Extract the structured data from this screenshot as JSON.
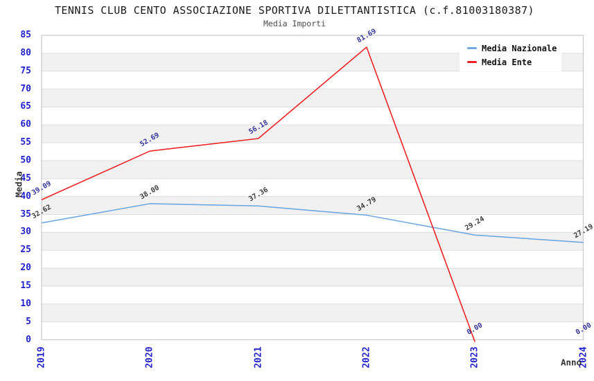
{
  "header": {
    "title": "TENNIS CLUB CENTO ASSOCIAZIONE SPORTIVA DILETTANTISTICA (c.f.81003180387)",
    "subtitle": "Media Importi"
  },
  "chart_data": {
    "type": "line",
    "x": [
      "2019",
      "2020",
      "2021",
      "2022",
      "2023",
      "2024"
    ],
    "series": [
      {
        "name": "Media Nazionale",
        "color": "#6FA9E0",
        "label_color": "#3B3B3B",
        "values": [
          32.62,
          38.0,
          37.36,
          34.79,
          29.24,
          27.19
        ]
      },
      {
        "name": "Media Ente",
        "color": "#EE2222",
        "label_color": "#333399",
        "values": [
          39.09,
          52.69,
          56.18,
          81.69,
          0.0,
          0.0
        ]
      }
    ],
    "xlabel": "Anno",
    "ylabel": "Media",
    "ylim": [
      0,
      85
    ],
    "ytick_step": 5,
    "grid": "horizontal-bands",
    "legend_position": "top-right"
  },
  "colors": {
    "tick_label": "#2222CC",
    "band": "#F1F1F1",
    "gridline": "#DDDDDD",
    "frame": "#C9C9C9",
    "background": "#FFFFFF"
  }
}
